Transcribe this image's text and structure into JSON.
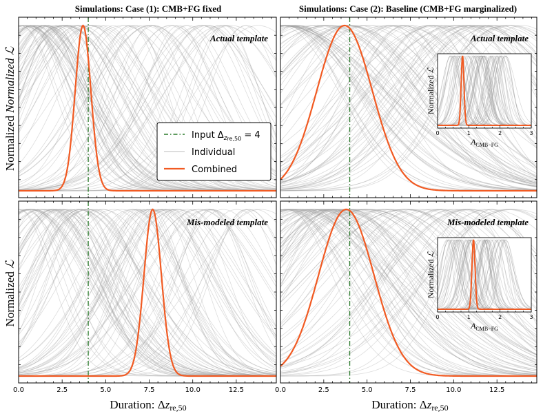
{
  "chart_data": [
    {
      "type": "line",
      "panel": "top-left",
      "title": "Simulations: Case (1): CMB+FG fixed",
      "annotation": "Actual template",
      "ylabel": "Normalized ℒ",
      "xlabel": "",
      "xlim": [
        0,
        14.8
      ],
      "x_ticks": [
        "0.0",
        "2.5",
        "5.0",
        "7.5",
        "10.0",
        "12.5"
      ],
      "input_value": 4,
      "combined": {
        "mu": 3.7,
        "sigma": 0.45,
        "baseline": 0.0
      },
      "individual": {
        "count": 90,
        "mu_range": [
          0,
          14
        ],
        "sigma_range": [
          1.8,
          3.8
        ]
      },
      "legend": {
        "position": "center-right",
        "entries": [
          {
            "label": "Input Δz_re,50 = 4",
            "style": "dashdot",
            "color": "#2a7a2a"
          },
          {
            "label": "Individual",
            "style": "solid",
            "color": "#bbbbbb"
          },
          {
            "label": "Combined",
            "style": "solid",
            "color": "#f15a22"
          }
        ]
      }
    },
    {
      "type": "line",
      "panel": "top-right",
      "title": "Simulations: Case (2): Baseline (CMB+FG marginalized)",
      "annotation": "Actual template",
      "ylabel": "",
      "xlabel": "",
      "xlim": [
        0,
        14.8
      ],
      "x_ticks": [
        "0.0",
        "2.5",
        "5.0",
        "7.5",
        "10.0",
        "12.5"
      ],
      "input_value": 4,
      "combined": {
        "mu": 3.7,
        "sigma": 1.6,
        "baseline": 0.0
      },
      "individual": {
        "count": 90,
        "mu_range": [
          0,
          14
        ],
        "sigma_range": [
          2.5,
          6
        ]
      },
      "inset": {
        "ylabel": "Normalized ℒ",
        "xlabel": "A_CMB−FG",
        "xlim": [
          0,
          3
        ],
        "x_ticks": [
          "0",
          "1",
          "2",
          "3"
        ],
        "combined": {
          "mu": 0.8,
          "sigma": 0.045
        },
        "individual": {
          "count": 60,
          "mu_range": [
            0.3,
            2.2
          ],
          "sigma_range": [
            0.15,
            0.35
          ]
        }
      }
    },
    {
      "type": "line",
      "panel": "bottom-left",
      "title": "",
      "annotation": "Mis-modeled template",
      "ylabel": "Normalized ℒ",
      "xlabel": "Duration: Δz_re,50",
      "xlim": [
        0,
        14.8
      ],
      "x_ticks": [
        "0.0",
        "2.5",
        "5.0",
        "7.5",
        "10.0",
        "12.5"
      ],
      "input_value": 4,
      "combined": {
        "mu": 7.7,
        "sigma": 0.5,
        "baseline": 0.0
      },
      "individual": {
        "count": 90,
        "mu_range": [
          0,
          14
        ],
        "sigma_range": [
          1.8,
          3.8
        ]
      }
    },
    {
      "type": "line",
      "panel": "bottom-right",
      "title": "",
      "annotation": "Mis-modeled template",
      "ylabel": "",
      "xlabel": "Duration: Δz_re,50",
      "xlim": [
        0,
        14.8
      ],
      "x_ticks": [
        "0.0",
        "2.5",
        "5.0",
        "7.5",
        "10.0",
        "12.5"
      ],
      "input_value": 4,
      "combined": {
        "mu": 3.8,
        "sigma": 1.6,
        "baseline": 0.0
      },
      "individual": {
        "count": 90,
        "mu_range": [
          0,
          14
        ],
        "sigma_range": [
          2.5,
          6
        ]
      },
      "inset": {
        "ylabel": "Normalized ℒ",
        "xlabel": "A_CMB−FG",
        "xlim": [
          0,
          3
        ],
        "x_ticks": [
          "0",
          "1",
          "2",
          "3"
        ],
        "combined": {
          "mu": 1.15,
          "sigma": 0.05
        },
        "individual": {
          "count": 60,
          "mu_range": [
            0.3,
            2.2
          ],
          "sigma_range": [
            0.15,
            0.35
          ]
        }
      }
    }
  ],
  "colors": {
    "combined": "#f15a22",
    "input": "#2a7a2a",
    "individual": "#9a9a9a"
  }
}
